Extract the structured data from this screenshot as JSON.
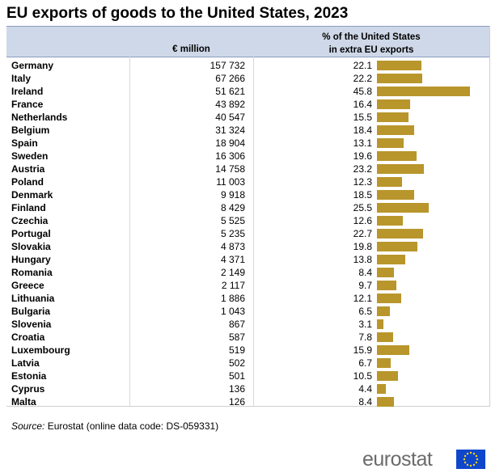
{
  "title": "EU exports of goods to the United States, 2023",
  "headers": {
    "eur": "€ million",
    "pct_line1": "% of the United States",
    "pct_line2": "in extra EU exports"
  },
  "chart_data": {
    "type": "bar",
    "title": "EU exports of goods to the United States, 2023",
    "categories": [
      "Germany",
      "Italy",
      "Ireland",
      "France",
      "Netherlands",
      "Belgium",
      "Spain",
      "Sweden",
      "Austria",
      "Poland",
      "Denmark",
      "Finland",
      "Czechia",
      "Portugal",
      "Slovakia",
      "Hungary",
      "Romania",
      "Greece",
      "Lithuania",
      "Bulgaria",
      "Slovenia",
      "Croatia",
      "Luxembourg",
      "Latvia",
      "Estonia",
      "Cyprus",
      "Malta"
    ],
    "eur_million": [
      "157 732",
      "67 266",
      "51 621",
      "43 892",
      "40 547",
      "31 324",
      "18 904",
      "16 306",
      "14 758",
      "11 003",
      "9 918",
      "8 429",
      "5 525",
      "5 235",
      "4 873",
      "4 371",
      "2 149",
      "2 117",
      "1 886",
      "1 043",
      "867",
      "587",
      "519",
      "502",
      "501",
      "136",
      "126"
    ],
    "series": [
      {
        "name": "% of the United States in extra EU exports",
        "values": [
          22.1,
          22.2,
          45.8,
          16.4,
          15.5,
          18.4,
          13.1,
          19.6,
          23.2,
          12.3,
          18.5,
          25.5,
          12.6,
          22.7,
          19.8,
          13.8,
          8.4,
          9.7,
          12.1,
          6.5,
          3.1,
          7.8,
          15.9,
          6.7,
          10.5,
          4.4,
          8.4
        ]
      }
    ],
    "bar_color": "#b8962b"
  },
  "source": {
    "label": "Source:",
    "text": "Eurostat (online data code: DS-059331)"
  },
  "logo": {
    "text": "eurostat",
    "flag_color": "#0e47cb",
    "star_color": "#ffd617"
  }
}
